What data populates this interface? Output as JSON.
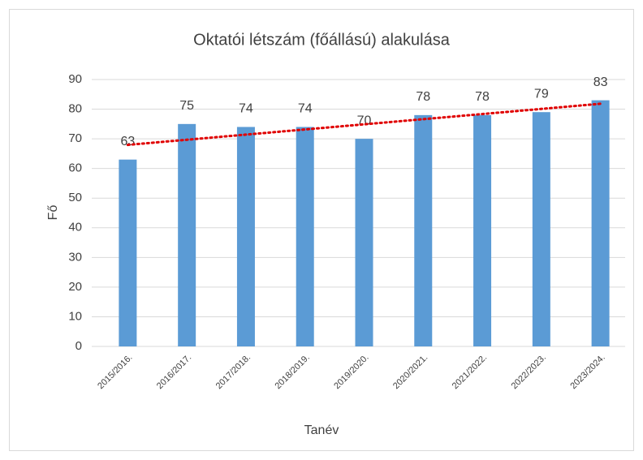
{
  "chart_data": {
    "type": "bar",
    "title": "Oktatói létszám (főállású) alakulása",
    "x_label": "Tanév",
    "y_label": "Fő",
    "categories": [
      "2015/2016.",
      "2016/2017.",
      "2017/2018.",
      "2018/2019.",
      "2019/2020.",
      "2020/2021.",
      "2021/2022.",
      "2022/2023.",
      "2023/2024."
    ],
    "values": [
      63,
      75,
      74,
      74,
      70,
      78,
      78,
      79,
      83
    ],
    "color": "#5b9bd5",
    "ylim": [
      0,
      90
    ],
    "yticks": [
      0,
      10,
      20,
      30,
      40,
      50,
      60,
      70,
      80,
      90
    ],
    "grid": true,
    "trendline": "linear",
    "trendline_color": "#e00000"
  }
}
